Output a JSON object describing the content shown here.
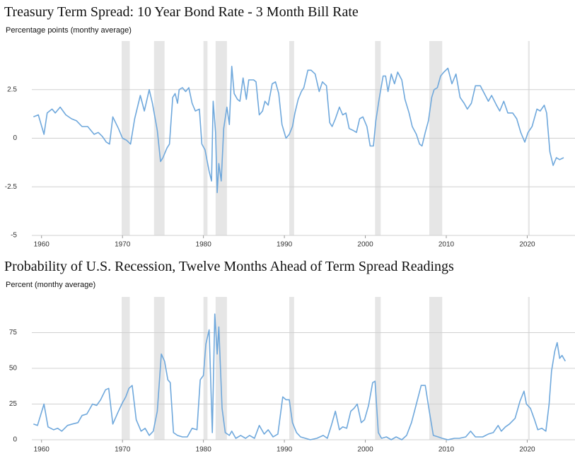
{
  "chart_data": [
    {
      "type": "line",
      "title": "Treasury Term Spread: 10 Year Bond Rate - 3 Month Bill Rate",
      "subtitle": "Percentage points (monthy average)",
      "xlim": [
        1958.8,
        2025.9
      ],
      "xticks": [
        1960,
        1970,
        1980,
        1990,
        2000,
        2010,
        2020
      ],
      "ylim": [
        -5,
        5
      ],
      "yticks": [
        -5,
        -2.5,
        0,
        2.5
      ],
      "grid": true,
      "recessions": [
        [
          1969.9,
          1970.9
        ],
        [
          1973.9,
          1975.2
        ],
        [
          1980.0,
          1980.5
        ],
        [
          1981.5,
          1982.9
        ],
        [
          1990.6,
          1991.2
        ],
        [
          2001.2,
          2001.9
        ],
        [
          2007.9,
          2009.5
        ],
        [
          2020.1,
          2020.3
        ]
      ],
      "recession_color": "#e6e6e6",
      "color": "#6fa8dc",
      "x": [
        1959,
        1959.6,
        1960.3,
        1960.7,
        1961.3,
        1961.7,
        1962.3,
        1963,
        1963.7,
        1964.3,
        1965,
        1965.7,
        1966.5,
        1967,
        1967.5,
        1968,
        1968.4,
        1968.8,
        1969.5,
        1970,
        1970.5,
        1971,
        1971.5,
        1972.2,
        1972.7,
        1973.3,
        1973.7,
        1974.3,
        1974.7,
        1975,
        1975.5,
        1975.8,
        1976.2,
        1976.5,
        1976.8,
        1977,
        1977.4,
        1977.8,
        1978.2,
        1978.6,
        1979,
        1979.5,
        1979.8,
        1980.2,
        1980.7,
        1981.0,
        1981.2,
        1981.5,
        1981.7,
        1981.9,
        1982.2,
        1982.5,
        1982.9,
        1983.2,
        1983.5,
        1983.8,
        1984.2,
        1984.5,
        1984.9,
        1985.3,
        1985.6,
        1986.2,
        1986.5,
        1986.9,
        1987.3,
        1987.6,
        1988,
        1988.5,
        1988.9,
        1989.3,
        1989.7,
        1990.2,
        1990.6,
        1991,
        1991.3,
        1991.7,
        1992.1,
        1992.4,
        1992.9,
        1993.3,
        1993.8,
        1994.3,
        1994.7,
        1995.2,
        1995.6,
        1995.9,
        1996.3,
        1996.8,
        1997.2,
        1997.6,
        1998,
        1998.5,
        1998.9,
        1999.3,
        1999.7,
        2000.2,
        2000.6,
        2001,
        2001.3,
        2001.7,
        2002.2,
        2002.5,
        2002.8,
        2003.2,
        2003.6,
        2004,
        2004.5,
        2004.9,
        2005.4,
        2005.8,
        2006.3,
        2006.7,
        2007,
        2007.4,
        2007.8,
        2008.2,
        2008.5,
        2008.9,
        2009.3,
        2009.7,
        2010.2,
        2010.7,
        2011.2,
        2011.7,
        2012.2,
        2012.6,
        2013.1,
        2013.6,
        2014.2,
        2014.7,
        2015.2,
        2015.6,
        2016.2,
        2016.6,
        2017.1,
        2017.6,
        2018.2,
        2018.7,
        2019.2,
        2019.7,
        2020.1,
        2020.6,
        2021.2,
        2021.6,
        2022.1,
        2022.4,
        2022.8,
        2023.2,
        2023.6,
        2024.0,
        2024.5
      ],
      "values": [
        1.1,
        1.2,
        0.2,
        1.3,
        1.5,
        1.3,
        1.6,
        1.2,
        1.0,
        0.9,
        0.6,
        0.6,
        0.2,
        0.3,
        0.1,
        -0.2,
        -0.3,
        1.1,
        0.5,
        0.0,
        -0.1,
        -0.3,
        1.0,
        2.2,
        1.4,
        2.5,
        1.8,
        0.4,
        -1.2,
        -1.0,
        -0.5,
        -0.3,
        2.1,
        2.3,
        1.8,
        2.5,
        2.6,
        2.4,
        2.6,
        1.8,
        1.4,
        1.5,
        -0.3,
        -0.6,
        -1.7,
        -2.2,
        1.9,
        0.3,
        -2.8,
        -1.3,
        -2.2,
        0.5,
        1.6,
        0.7,
        3.7,
        2.3,
        2.0,
        1.9,
        3.1,
        2.0,
        3.0,
        3.0,
        2.9,
        1.2,
        1.4,
        1.9,
        1.7,
        2.8,
        2.9,
        2.3,
        0.7,
        0.0,
        0.2,
        0.6,
        1.3,
        2.0,
        2.4,
        2.6,
        3.5,
        3.5,
        3.3,
        2.4,
        2.9,
        2.7,
        0.8,
        0.6,
        1.0,
        1.6,
        1.2,
        1.3,
        0.5,
        0.4,
        0.3,
        1.0,
        1.1,
        0.6,
        -0.4,
        -0.4,
        0.9,
        2.0,
        3.2,
        3.2,
        2.4,
        3.3,
        2.8,
        3.4,
        3.0,
        2.0,
        1.3,
        0.6,
        0.2,
        -0.3,
        -0.4,
        0.3,
        0.9,
        2.1,
        2.5,
        2.6,
        3.2,
        3.4,
        3.6,
        2.8,
        3.3,
        2.1,
        1.8,
        1.5,
        1.8,
        2.7,
        2.7,
        2.3,
        1.9,
        2.2,
        1.7,
        1.4,
        1.9,
        1.3,
        1.3,
        1.0,
        0.3,
        -0.2,
        0.3,
        0.6,
        1.5,
        1.4,
        1.7,
        1.3,
        -0.7,
        -1.4,
        -1.0,
        -1.1,
        -1.0
      ]
    },
    {
      "type": "line",
      "title": "Probability of U.S. Recession, Twelve Months Ahead of Term Spread Readings",
      "subtitle": "Percent (monthy average)",
      "xlim": [
        1958.8,
        2025.9
      ],
      "xticks": [
        1960,
        1970,
        1980,
        1990,
        2000,
        2010,
        2020
      ],
      "ylim": [
        0,
        100
      ],
      "yticks": [
        0,
        25,
        50,
        75
      ],
      "grid": true,
      "recessions": [
        [
          1969.9,
          1970.9
        ],
        [
          1973.9,
          1975.2
        ],
        [
          1980.0,
          1980.5
        ],
        [
          1981.5,
          1982.9
        ],
        [
          1990.6,
          1991.2
        ],
        [
          2001.2,
          2001.9
        ],
        [
          2007.9,
          2009.5
        ],
        [
          2020.1,
          2020.3
        ]
      ],
      "recession_color": "#e6e6e6",
      "color": "#6fa8dc",
      "x": [
        1959,
        1959.5,
        1960.3,
        1960.8,
        1961.5,
        1962,
        1962.5,
        1963.2,
        1963.8,
        1964.5,
        1965,
        1965.6,
        1966.3,
        1966.8,
        1967.3,
        1967.9,
        1968.3,
        1968.8,
        1969.5,
        1970,
        1970.4,
        1970.8,
        1971.2,
        1971.7,
        1972.3,
        1972.8,
        1973.3,
        1973.8,
        1974.3,
        1974.8,
        1975.2,
        1975.6,
        1975.9,
        1976.3,
        1976.8,
        1977.4,
        1978,
        1978.6,
        1979.2,
        1979.6,
        1980,
        1980.3,
        1980.7,
        1981.1,
        1981.4,
        1981.7,
        1981.9,
        1982.3,
        1982.7,
        1983.2,
        1983.5,
        1984,
        1984.6,
        1985.2,
        1985.7,
        1986.3,
        1986.9,
        1987.5,
        1988,
        1988.6,
        1989.2,
        1989.8,
        1990.2,
        1990.6,
        1991,
        1991.5,
        1992,
        1992.6,
        1993.2,
        1994,
        1994.8,
        1995.3,
        1995.8,
        1996.3,
        1996.8,
        1997.2,
        1997.7,
        1998.2,
        1998.6,
        1999,
        1999.5,
        1999.9,
        2000.4,
        2000.9,
        2001.2,
        2001.6,
        2002,
        2002.6,
        2003.2,
        2003.8,
        2004.5,
        2005.1,
        2005.7,
        2006.3,
        2006.9,
        2007.4,
        2007.9,
        2008.4,
        2009,
        2009.5,
        2010.2,
        2011,
        2011.6,
        2012.4,
        2013,
        2013.6,
        2014.5,
        2015.2,
        2015.8,
        2016.4,
        2016.8,
        2017.3,
        2017.8,
        2018.5,
        2019.1,
        2019.6,
        2019.9,
        2020.4,
        2020.9,
        2021.3,
        2021.8,
        2022.3,
        2022.7,
        2023,
        2023.4,
        2023.7,
        2024,
        2024.3,
        2024.7
      ],
      "values": [
        11,
        10,
        25,
        9,
        7,
        8,
        6,
        10,
        11,
        12,
        17,
        18,
        25,
        24,
        28,
        35,
        36,
        11,
        20,
        26,
        30,
        36,
        38,
        14,
        6,
        8,
        3,
        6,
        20,
        60,
        55,
        42,
        40,
        5,
        3,
        2,
        2,
        8,
        7,
        42,
        45,
        67,
        77,
        5,
        88,
        60,
        79,
        22,
        5,
        3,
        6,
        1,
        3,
        1,
        3,
        1,
        10,
        4,
        7,
        2,
        4,
        30,
        28,
        28,
        12,
        5,
        2,
        1,
        0,
        1,
        3,
        1,
        10,
        20,
        7,
        9,
        8,
        20,
        22,
        25,
        12,
        14,
        24,
        40,
        41,
        5,
        1,
        2,
        0,
        2,
        0,
        3,
        12,
        25,
        38,
        38,
        20,
        3,
        2,
        1,
        0,
        1,
        1,
        2,
        6,
        2,
        2,
        4,
        5,
        10,
        6,
        9,
        11,
        15,
        27,
        34,
        25,
        22,
        14,
        7,
        8,
        6,
        25,
        48,
        62,
        68,
        57,
        59,
        55
      ]
    }
  ]
}
